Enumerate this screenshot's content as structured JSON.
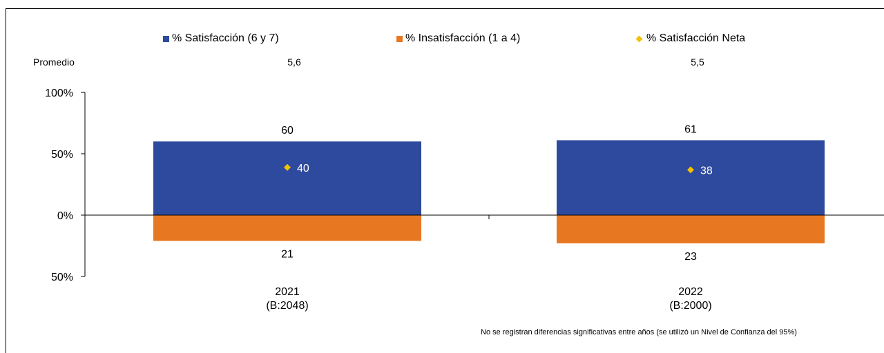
{
  "legend": [
    {
      "label": "% Satisfacción (6 y 7)",
      "color": "#2E4A9E",
      "marker": "square"
    },
    {
      "label": "% Insatisfacción (1 a 4)",
      "color": "#E87722",
      "marker": "square"
    },
    {
      "label": "% Satisfacción Neta",
      "color": "#F2C200",
      "marker": "diamond"
    }
  ],
  "promedio": {
    "label": "Promedio",
    "values": [
      "5,6",
      "5,5"
    ]
  },
  "footnote": "No se registran diferencias significativas entre años (se utilizó un Nivel de Confianza del 95%)",
  "chart_data": {
    "type": "bar",
    "stacked": "diverging",
    "categories": [
      "2021",
      "2022"
    ],
    "category_sublabels": [
      "(B:2048)",
      "(B:2000)"
    ],
    "series": [
      {
        "name": "% Satisfacción (6 y 7)",
        "values": [
          60,
          61
        ],
        "color": "#2E4A9E",
        "direction": "up"
      },
      {
        "name": "% Insatisfacción (1 a 4)",
        "values": [
          21,
          23
        ],
        "color": "#E87722",
        "direction": "down"
      },
      {
        "name": "% Satisfacción Neta",
        "values": [
          40,
          38
        ],
        "color": "#F2C200",
        "marker": "diamond"
      }
    ],
    "yticks": [
      {
        "value": 100,
        "label": "100%"
      },
      {
        "value": 50,
        "label": "50%"
      },
      {
        "value": 0,
        "label": "0%"
      },
      {
        "value": -50,
        "label": "50%"
      }
    ],
    "ylim": [
      -50,
      100
    ],
    "grid": false,
    "legend_position": "top"
  }
}
